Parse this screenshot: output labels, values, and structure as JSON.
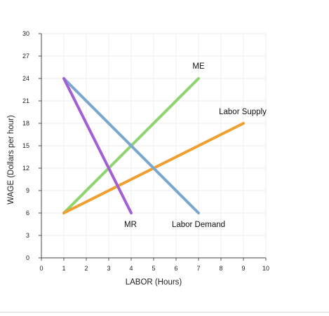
{
  "chart_data": {
    "type": "line",
    "title": "",
    "xlabel": "LABOR (Hours)",
    "ylabel": "WAGE (Dollars per hour)",
    "xlim": [
      0,
      10
    ],
    "ylim": [
      0,
      30
    ],
    "x_ticks": [
      "0",
      "1",
      "2",
      "3",
      "4",
      "5",
      "6",
      "7",
      "8",
      "9",
      "10"
    ],
    "y_ticks": [
      "0",
      "3",
      "6",
      "9",
      "12",
      "15",
      "18",
      "21",
      "24",
      "27",
      "30"
    ],
    "grid": true,
    "series": [
      {
        "name": "ME",
        "color": "#8fd46e",
        "points": [
          [
            1,
            6
          ],
          [
            7,
            24
          ]
        ]
      },
      {
        "name": "Labor Supply",
        "color": "#f0a030",
        "points": [
          [
            1,
            6
          ],
          [
            9,
            18
          ]
        ]
      },
      {
        "name": "Labor Demand",
        "color": "#7ba7cf",
        "points": [
          [
            1,
            24
          ],
          [
            7,
            6
          ]
        ]
      },
      {
        "name": "MR",
        "color": "#a45fd6",
        "points": [
          [
            1,
            24
          ],
          [
            4,
            6
          ]
        ]
      }
    ]
  }
}
